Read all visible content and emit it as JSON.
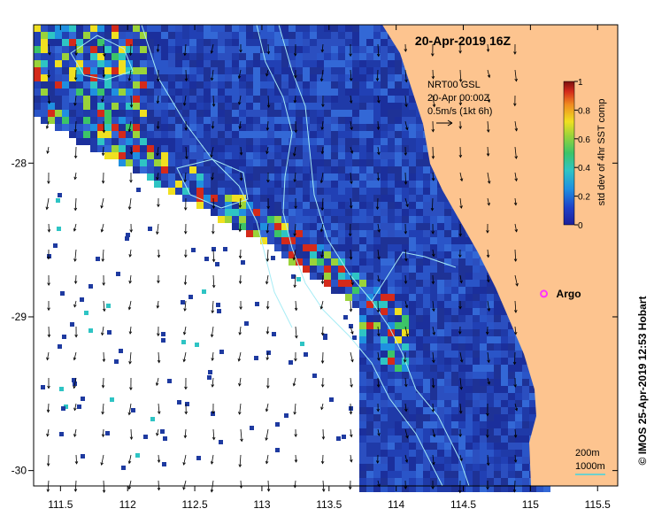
{
  "title": "20-Apr-2019 16Z",
  "current_info": {
    "line1": "NRT00 GSL",
    "line2": "20-Apr 00:00Z",
    "line3": "0.5m/s (1kt 6h)"
  },
  "colorbar": {
    "label": "std dev of 4hr SST comp",
    "ticks": [
      "0",
      "0.2",
      "0.4",
      "0.6",
      "0.8",
      "1"
    ],
    "min": 0,
    "max": 1
  },
  "argo": {
    "label": "Argo",
    "lon": 115.1,
    "lat": -28.85,
    "color": "#ff33ff"
  },
  "axes": {
    "x_ticks": [
      "111.5",
      "112",
      "112.5",
      "113",
      "113.5",
      "114",
      "114.5",
      "115",
      "115.5"
    ],
    "x_values": [
      111.5,
      112,
      112.5,
      113,
      113.5,
      114,
      114.5,
      115,
      115.5
    ],
    "y_ticks": [
      "-28",
      "-29",
      "-30"
    ],
    "y_values": [
      -28,
      -29,
      -30
    ],
    "lon_range": [
      111.3,
      115.65
    ],
    "lat_range": [
      -27.1,
      -30.1
    ]
  },
  "contour_legend": {
    "line1": "200m",
    "line2": "1000m",
    "line2_color": "#3fd4e0"
  },
  "credit": "© IMOS 25-Apr-2019 12:53 Hobart",
  "colors": {
    "land": "#fdc48f",
    "ocean_deep": "#1f3aa8",
    "ocean_mid": "#3460d0",
    "contour": "#a7ecf5",
    "arrow": "#000000"
  }
}
